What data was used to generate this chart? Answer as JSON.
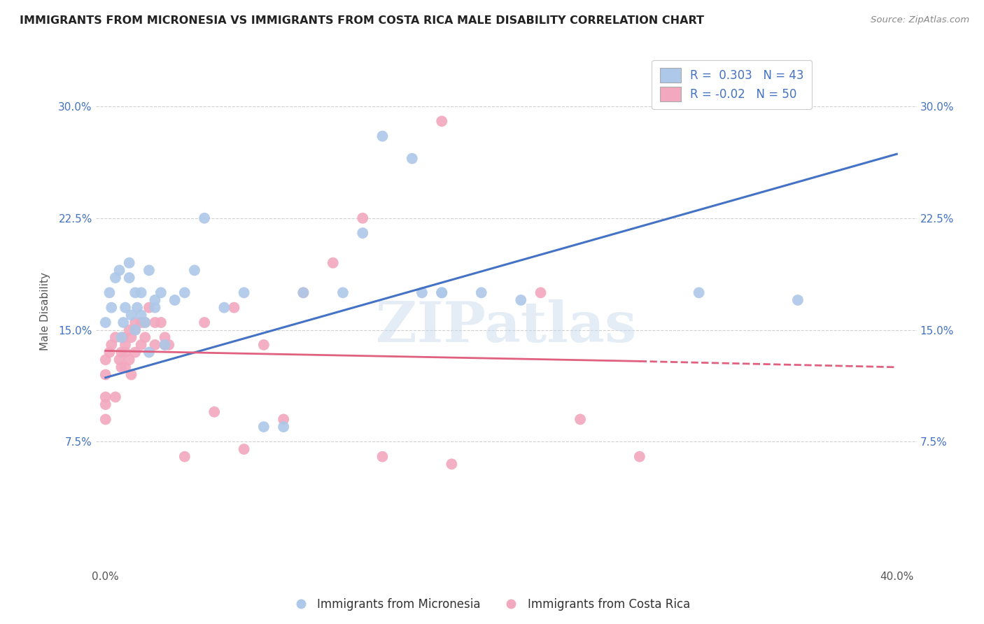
{
  "title": "IMMIGRANTS FROM MICRONESIA VS IMMIGRANTS FROM COSTA RICA MALE DISABILITY CORRELATION CHART",
  "source": "Source: ZipAtlas.com",
  "ylabel": "Male Disability",
  "xlabel": "",
  "xlim": [
    -0.005,
    0.41
  ],
  "ylim": [
    -0.01,
    0.335
  ],
  "yticks": [
    0.075,
    0.15,
    0.225,
    0.3
  ],
  "ytick_labels": [
    "7.5%",
    "15.0%",
    "22.5%",
    "30.0%"
  ],
  "xticks": [
    0.0,
    0.4
  ],
  "xtick_labels": [
    "0.0%",
    "40.0%"
  ],
  "blue_R": 0.303,
  "blue_N": 43,
  "pink_R": -0.02,
  "pink_N": 50,
  "blue_color": "#adc8e8",
  "pink_color": "#f2a8be",
  "blue_line_color": "#4472c4",
  "pink_line_color": "#e06080",
  "grid_color": "#d0d0d0",
  "grid_style": "--",
  "watermark": "ZIPatlas",
  "blue_line_x0": 0.0,
  "blue_line_y0": 0.118,
  "blue_line_x1": 0.4,
  "blue_line_y1": 0.268,
  "pink_line_x0": 0.0,
  "pink_line_y0": 0.136,
  "pink_line_x1_solid": 0.27,
  "pink_line_y1_solid": 0.129,
  "pink_line_x1_dash": 0.4,
  "pink_line_y1_dash": 0.125,
  "blue_scatter_x": [
    0.0,
    0.002,
    0.003,
    0.005,
    0.007,
    0.008,
    0.009,
    0.01,
    0.012,
    0.012,
    0.013,
    0.015,
    0.015,
    0.016,
    0.018,
    0.018,
    0.02,
    0.022,
    0.022,
    0.025,
    0.025,
    0.028,
    0.03,
    0.035,
    0.04,
    0.045,
    0.05,
    0.06,
    0.07,
    0.08,
    0.09,
    0.1,
    0.12,
    0.13,
    0.14,
    0.155,
    0.17,
    0.21,
    0.3,
    0.35,
    0.16,
    0.17,
    0.19
  ],
  "blue_scatter_y": [
    0.155,
    0.175,
    0.165,
    0.185,
    0.19,
    0.145,
    0.155,
    0.165,
    0.185,
    0.195,
    0.16,
    0.15,
    0.175,
    0.165,
    0.175,
    0.16,
    0.155,
    0.19,
    0.135,
    0.17,
    0.165,
    0.175,
    0.14,
    0.17,
    0.175,
    0.19,
    0.225,
    0.165,
    0.175,
    0.085,
    0.085,
    0.175,
    0.175,
    0.215,
    0.28,
    0.265,
    0.175,
    0.17,
    0.175,
    0.17,
    0.175,
    0.175,
    0.175
  ],
  "pink_scatter_x": [
    0.0,
    0.0,
    0.0,
    0.0,
    0.0,
    0.002,
    0.003,
    0.005,
    0.005,
    0.007,
    0.008,
    0.008,
    0.009,
    0.01,
    0.01,
    0.01,
    0.012,
    0.012,
    0.013,
    0.013,
    0.015,
    0.015,
    0.015,
    0.018,
    0.018,
    0.02,
    0.02,
    0.022,
    0.025,
    0.025,
    0.028,
    0.03,
    0.03,
    0.032,
    0.04,
    0.05,
    0.055,
    0.065,
    0.07,
    0.08,
    0.09,
    0.1,
    0.115,
    0.13,
    0.14,
    0.17,
    0.175,
    0.22,
    0.24,
    0.27
  ],
  "pink_scatter_y": [
    0.13,
    0.12,
    0.105,
    0.1,
    0.09,
    0.135,
    0.14,
    0.145,
    0.105,
    0.13,
    0.135,
    0.125,
    0.145,
    0.14,
    0.135,
    0.125,
    0.15,
    0.13,
    0.12,
    0.145,
    0.155,
    0.15,
    0.135,
    0.14,
    0.155,
    0.155,
    0.145,
    0.165,
    0.155,
    0.14,
    0.155,
    0.145,
    0.14,
    0.14,
    0.065,
    0.155,
    0.095,
    0.165,
    0.07,
    0.14,
    0.09,
    0.175,
    0.195,
    0.225,
    0.065,
    0.29,
    0.06,
    0.175,
    0.09,
    0.065
  ]
}
